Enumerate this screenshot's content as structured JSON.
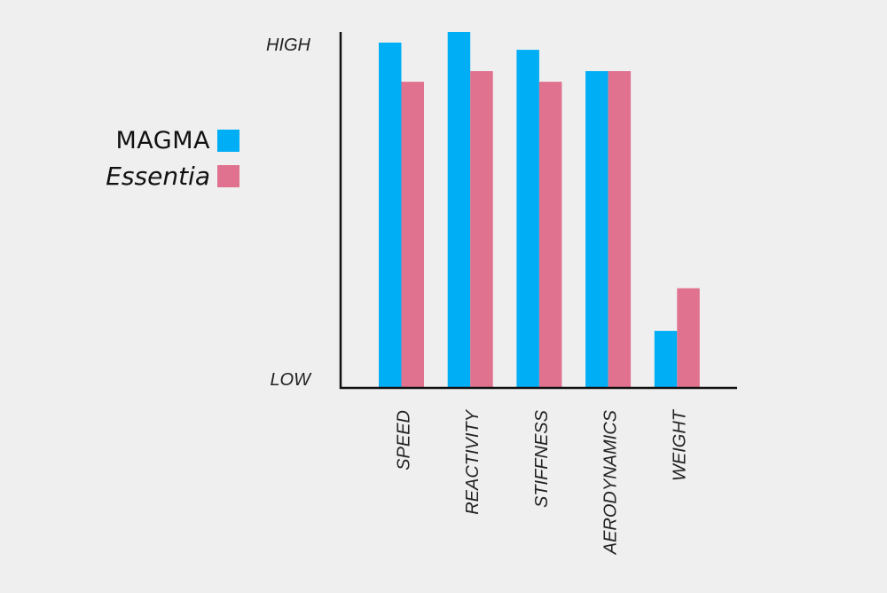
{
  "chart_data": {
    "type": "bar",
    "categories": [
      "SPEED",
      "REACTIVITY",
      "STIFFNESS",
      "AERODYNAMICS",
      "WEIGHT"
    ],
    "series": [
      {
        "name": "MAGMA",
        "color": "#00aef5",
        "values": [
          97,
          100,
          95,
          89,
          16
        ]
      },
      {
        "name": "Essentia",
        "color": "#e07290",
        "values": [
          86,
          89,
          86,
          89,
          28
        ]
      }
    ],
    "y_tick_labels": {
      "high": "HIGH",
      "low": "LOW"
    },
    "ylim": [
      0,
      100
    ],
    "legend": "left",
    "grid": false
  }
}
